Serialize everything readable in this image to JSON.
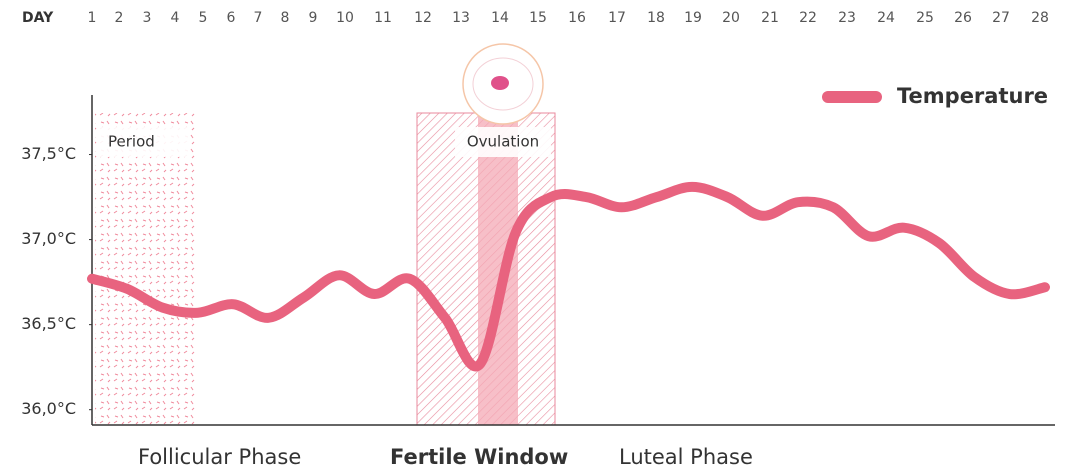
{
  "chart_data": {
    "type": "line",
    "x_label": "DAY",
    "x": [
      1,
      2,
      3,
      4,
      5,
      6,
      7,
      8,
      9,
      10,
      11,
      12,
      13,
      14,
      15,
      16,
      17,
      18,
      19,
      20,
      21,
      22,
      23,
      24,
      25,
      26,
      27,
      28
    ],
    "series": [
      {
        "name": "Temperature",
        "color": "#e8637f",
        "values": [
          36.77,
          36.71,
          36.6,
          36.57,
          36.62,
          36.54,
          36.66,
          36.79,
          36.68,
          36.77,
          36.54,
          36.27,
          37.04,
          37.25,
          37.25,
          37.19,
          37.25,
          37.31,
          37.25,
          37.14,
          37.22,
          37.19,
          37.02,
          37.07,
          36.98,
          36.78,
          36.68,
          36.72
        ]
      }
    ],
    "ylim": [
      35.91,
      37.85
    ],
    "yticks": [
      {
        "value": 36.0,
        "label": "36,0°C"
      },
      {
        "value": 36.5,
        "label": "36,5°C"
      },
      {
        "value": 37.0,
        "label": "37,0°C"
      },
      {
        "value": 37.5,
        "label": "37,5°C"
      }
    ],
    "annotations": {
      "period": "Period",
      "ovulation": "Ovulation"
    },
    "phases": {
      "follicular": "Follicular Phase",
      "fertile": "Fertile Window",
      "luteal": "Luteal Phase"
    },
    "legend_position": "top-right"
  }
}
